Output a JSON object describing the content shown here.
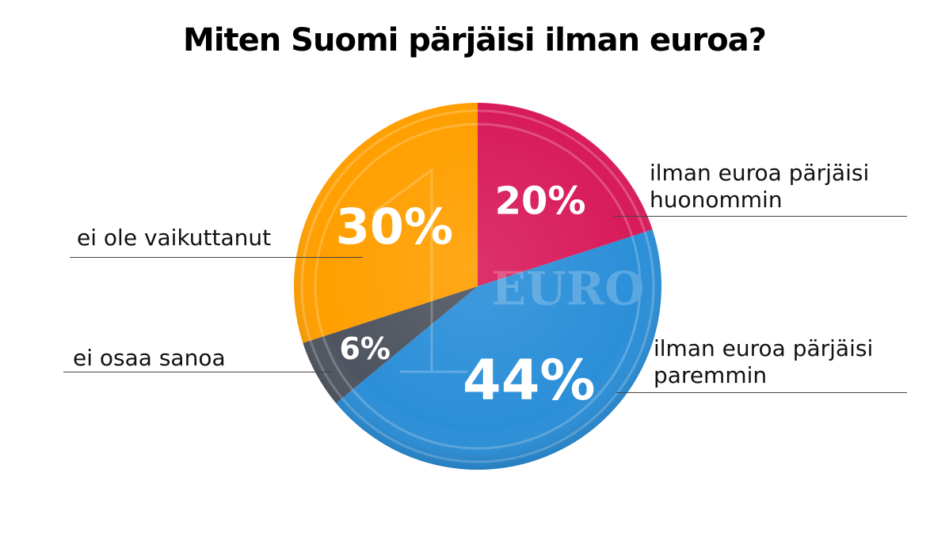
{
  "chart_data": {
    "type": "pie",
    "title": "Miten Suomi pärjäisi ilman euroa?",
    "slices": [
      {
        "label": "ilman euroa pärjäisi huonommin",
        "value": 20,
        "value_label": "20%",
        "color": "#d81b5a"
      },
      {
        "label": "ilman euroa pärjäisi paremmin",
        "value": 44,
        "value_label": "44%",
        "color": "#2b8fd8"
      },
      {
        "label": "ei osaa sanoa",
        "value": 6,
        "value_label": "6%",
        "color": "#4f5560"
      },
      {
        "label": "ei ole vaikuttanut",
        "value": 30,
        "value_label": "30%",
        "color": "#ff9f00"
      }
    ]
  },
  "labels": {
    "huonommin": [
      "ilman euroa pärjäisi",
      "huonommin"
    ],
    "paremmin": [
      "ilman euroa pärjäisi",
      "paremmin"
    ],
    "ei_osaa": "ei osaa sanoa",
    "ei_ole": "ei ole vaikuttanut"
  }
}
